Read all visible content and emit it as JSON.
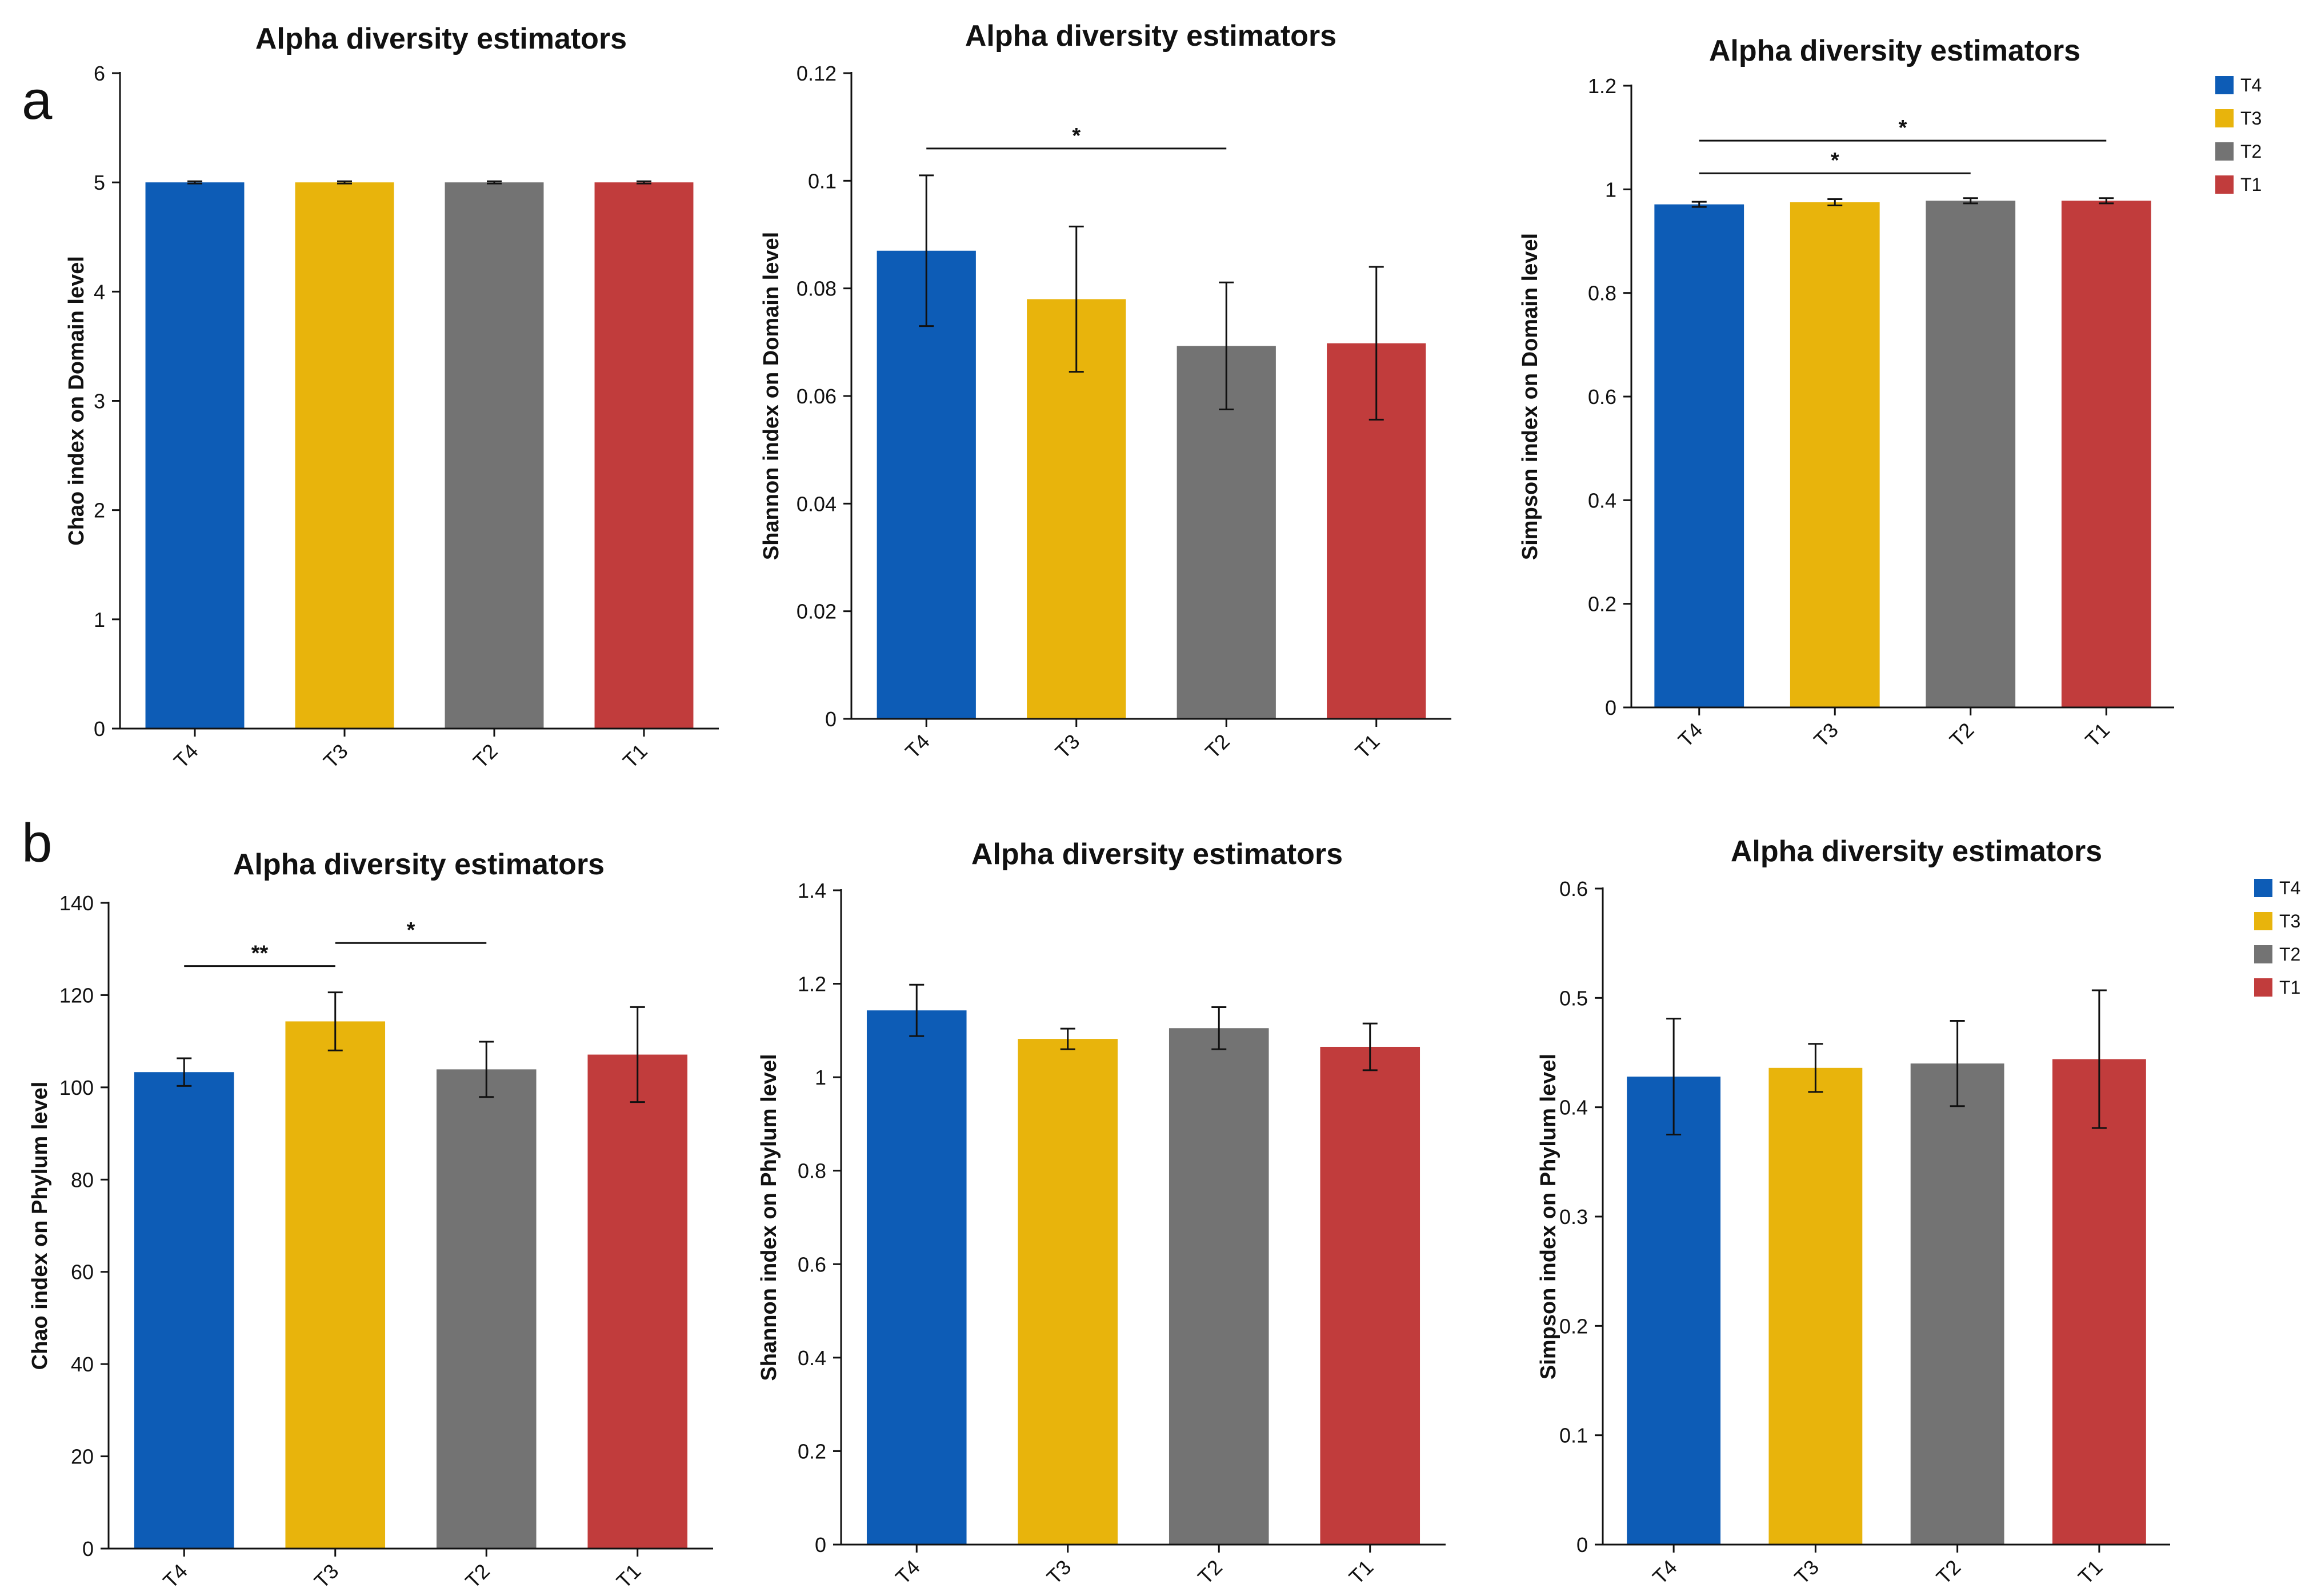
{
  "panels": [
    {
      "letter": "a"
    },
    {
      "letter": "b"
    }
  ],
  "colors": {
    "T4": "#0d5cb6",
    "T3": "#e8b40c",
    "T2": "#737373",
    "T1": "#c13c3c"
  },
  "legend": [
    "T4",
    "T3",
    "T2",
    "T1"
  ],
  "chart_data": [
    {
      "type": "bar",
      "panel": "a",
      "title": "Alpha diversity estimators",
      "xlabel": "",
      "ylabel": "Chao index on Domain level",
      "categories": [
        "T4",
        "T3",
        "T2",
        "T1"
      ],
      "values": [
        5,
        5,
        5,
        5
      ],
      "errors": [
        0.01,
        0.01,
        0.01,
        0.01
      ],
      "ylim": [
        0,
        6
      ],
      "yticks": [
        0,
        1,
        2,
        3,
        4,
        5,
        6
      ],
      "ytick_labels": [
        "0",
        "1",
        "2",
        "3",
        "4",
        "5",
        "6"
      ],
      "significance": [],
      "legend": false
    },
    {
      "type": "bar",
      "panel": "a",
      "title": "Alpha diversity estimators",
      "xlabel": "",
      "ylabel": "Shannon index on Domain level",
      "categories": [
        "T4",
        "T3",
        "T2",
        "T1"
      ],
      "values": [
        0.087,
        0.078,
        0.0693,
        0.0698
      ],
      "errors": [
        0.014,
        0.0135,
        0.0118,
        0.0142
      ],
      "ylim": [
        0,
        0.12
      ],
      "yticks": [
        0,
        0.02,
        0.04,
        0.06,
        0.08,
        0.1,
        0.12
      ],
      "ytick_labels": [
        "0",
        "0.02",
        "0.04",
        "0.06",
        "0.08",
        "0.1",
        "0.12"
      ],
      "significance": [
        {
          "from": 0,
          "to": 2,
          "y": 0.106,
          "label": "*"
        }
      ],
      "legend": false
    },
    {
      "type": "bar",
      "panel": "a",
      "title": "Alpha diversity estimators",
      "xlabel": "",
      "ylabel": "Simpson index on Domain level",
      "categories": [
        "T4",
        "T3",
        "T2",
        "T1"
      ],
      "values": [
        0.971,
        0.975,
        0.978,
        0.978
      ],
      "errors": [
        0.005,
        0.006,
        0.005,
        0.005
      ],
      "ylim": [
        0,
        1.2
      ],
      "yticks": [
        0,
        0.2,
        0.4,
        0.6,
        0.8,
        1,
        1.2
      ],
      "ytick_labels": [
        "0",
        "0.2",
        "0.4",
        "0.6",
        "0.8",
        "1",
        "1.2"
      ],
      "significance": [
        {
          "from": 0,
          "to": 2,
          "y": 1.031,
          "label": "*"
        },
        {
          "from": 0,
          "to": 3,
          "y": 1.094,
          "label": "*"
        }
      ],
      "legend": true
    },
    {
      "type": "bar",
      "panel": "b",
      "title": "Alpha diversity estimators",
      "xlabel": "",
      "ylabel": "Chao index on Phylum level",
      "categories": [
        "T4",
        "T3",
        "T2",
        "T1"
      ],
      "values": [
        103.3,
        114.3,
        103.9,
        107.1
      ],
      "errors": [
        3,
        6.3,
        6,
        10.3
      ],
      "ylim": [
        0,
        140
      ],
      "yticks": [
        0,
        20,
        40,
        60,
        80,
        100,
        120,
        140
      ],
      "ytick_labels": [
        "0",
        "20",
        "40",
        "60",
        "80",
        "100",
        "120",
        "140"
      ],
      "significance": [
        {
          "from": 0,
          "to": 1,
          "y": 126.3,
          "label": "**"
        },
        {
          "from": 1,
          "to": 2,
          "y": 131.3,
          "label": "*"
        }
      ],
      "legend": false
    },
    {
      "type": "bar",
      "panel": "b",
      "title": "Alpha diversity estimators",
      "xlabel": "",
      "ylabel": "Shannon index on Phylum level",
      "categories": [
        "T4",
        "T3",
        "T2",
        "T1"
      ],
      "values": [
        1.143,
        1.082,
        1.105,
        1.065
      ],
      "errors": [
        0.055,
        0.022,
        0.045,
        0.05
      ],
      "ylim": [
        0,
        1.4
      ],
      "yticks": [
        0,
        0.2,
        0.4,
        0.6,
        0.8,
        1,
        1.2,
        1.4
      ],
      "ytick_labels": [
        "0",
        "0.2",
        "0.4",
        "0.6",
        "0.8",
        "1",
        "1.2",
        "1.4"
      ],
      "significance": [],
      "legend": false
    },
    {
      "type": "bar",
      "panel": "b",
      "title": "Alpha diversity estimators",
      "xlabel": "",
      "ylabel": "Simpson index on Phylum level",
      "categories": [
        "T4",
        "T3",
        "T2",
        "T1"
      ],
      "values": [
        0.428,
        0.436,
        0.44,
        0.444
      ],
      "errors": [
        0.053,
        0.022,
        0.039,
        0.063
      ],
      "ylim": [
        0,
        0.6
      ],
      "yticks": [
        0,
        0.1,
        0.2,
        0.3,
        0.4,
        0.5,
        0.6
      ],
      "ytick_labels": [
        "0",
        "0.1",
        "0.2",
        "0.3",
        "0.4",
        "0.5",
        "0.6"
      ],
      "significance": [],
      "legend": true
    }
  ]
}
